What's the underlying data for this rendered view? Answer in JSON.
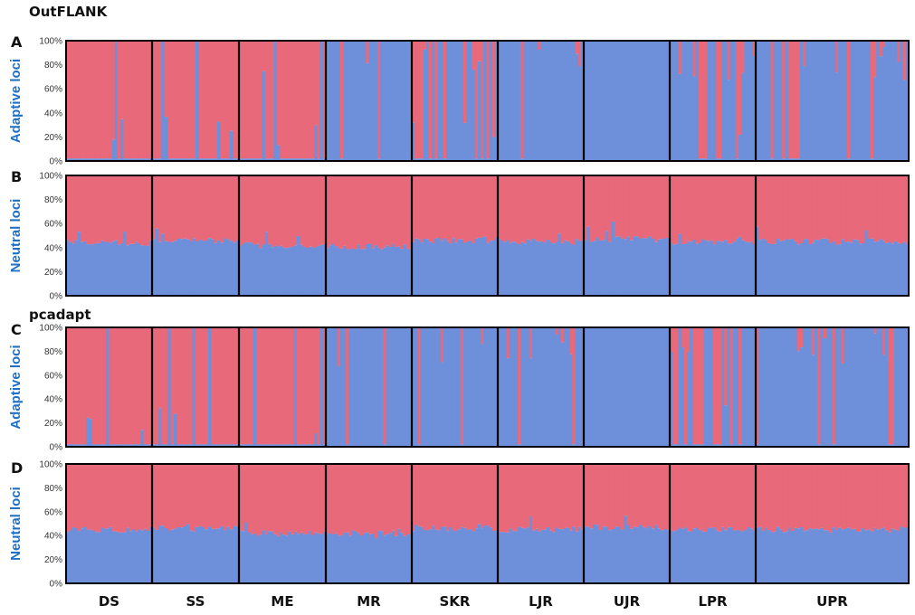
{
  "colors": {
    "cluster1": "#E8697A",
    "cluster2": "#6E8FDA",
    "ylabel": "#1F6FC5",
    "frame": "#000000"
  },
  "sections": [
    {
      "title": "OutFLANK",
      "panels": [
        "A",
        "B"
      ]
    },
    {
      "title": "pcadapt",
      "panels": [
        "C",
        "D"
      ]
    }
  ],
  "chart_data": [
    {
      "id": "A",
      "type": "bar",
      "stacked": true,
      "ylabel": "Adaptive loci",
      "yticks": [
        "0%",
        "20%",
        "40%",
        "60%",
        "80%",
        "100%"
      ],
      "ylim": [
        0,
        100
      ],
      "categories": [
        "DS",
        "SS",
        "ME",
        "MR",
        "SKR",
        "LJR",
        "UJR",
        "LPR",
        "UPR"
      ],
      "series": [
        {
          "color": "#E8697A",
          "values_by_population": [
            95,
            95,
            97,
            12,
            30,
            6,
            0,
            25,
            12
          ]
        },
        {
          "color": "#6E8FDA",
          "values_by_population": [
            5,
            5,
            3,
            88,
            70,
            94,
            100,
            75,
            88
          ]
        }
      ]
    },
    {
      "id": "B",
      "type": "bar",
      "stacked": true,
      "ylabel": "Neutral loci",
      "yticks": [
        "0%",
        "20%",
        "40%",
        "60%",
        "80%",
        "100%"
      ],
      "ylim": [
        0,
        100
      ],
      "categories": [
        "DS",
        "SS",
        "ME",
        "MR",
        "SKR",
        "LJR",
        "UJR",
        "LPR",
        "UPR"
      ],
      "series": [
        {
          "color": "#6E8FDA",
          "values_by_population": [
            44,
            46,
            42,
            41,
            46,
            45,
            47,
            45,
            45
          ]
        },
        {
          "color": "#E8697A",
          "values_by_population": [
            56,
            54,
            58,
            59,
            54,
            55,
            53,
            55,
            55
          ]
        }
      ]
    },
    {
      "id": "C",
      "type": "bar",
      "stacked": true,
      "ylabel": "Adaptive loci",
      "yticks": [
        "0%",
        "20%",
        "40%",
        "60%",
        "80%",
        "100%"
      ],
      "ylim": [
        0,
        100
      ],
      "categories": [
        "DS",
        "SS",
        "ME",
        "MR",
        "SKR",
        "LJR",
        "UJR",
        "LPR",
        "UPR"
      ],
      "series": [
        {
          "color": "#E8697A",
          "values_by_population": [
            95,
            92,
            95,
            12,
            30,
            6,
            0,
            28,
            12
          ]
        },
        {
          "color": "#6E8FDA",
          "values_by_population": [
            5,
            8,
            5,
            88,
            70,
            94,
            100,
            72,
            88
          ]
        }
      ]
    },
    {
      "id": "D",
      "type": "bar",
      "stacked": true,
      "ylabel": "Neutral loci",
      "yticks": [
        "0%",
        "20%",
        "40%",
        "60%",
        "80%",
        "100%"
      ],
      "ylim": [
        0,
        100
      ],
      "categories": [
        "DS",
        "SS",
        "ME",
        "MR",
        "SKR",
        "LJR",
        "UJR",
        "LPR",
        "UPR"
      ],
      "series": [
        {
          "color": "#6E8FDA",
          "values_by_population": [
            45,
            46,
            42,
            42,
            46,
            45,
            47,
            45,
            45
          ]
        },
        {
          "color": "#E8697A",
          "values_by_population": [
            55,
            54,
            58,
            58,
            54,
            55,
            53,
            55,
            55
          ]
        }
      ]
    }
  ]
}
